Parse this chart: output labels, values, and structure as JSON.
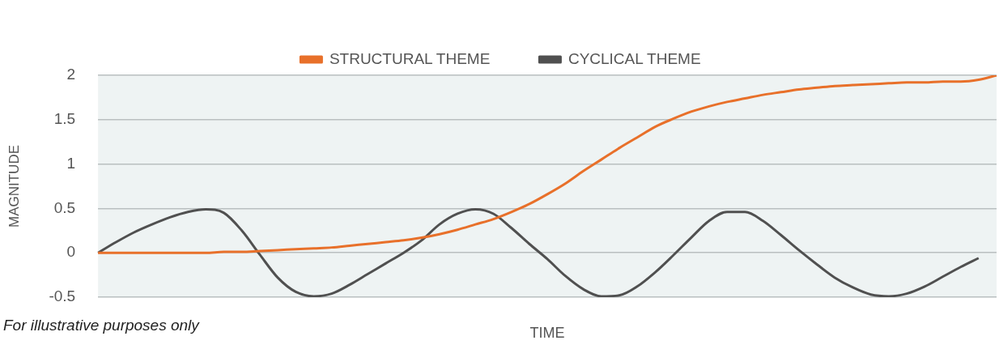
{
  "chart_data": {
    "type": "line",
    "xlabel": "TIME",
    "ylabel": "MAGNITUDE",
    "categories": [
      null,
      null,
      null,
      null,
      null,
      null,
      null,
      null,
      null,
      null,
      null,
      null,
      null,
      null,
      null,
      null,
      null,
      null,
      null,
      null,
      null,
      null,
      null,
      null,
      null,
      null,
      null,
      null,
      null,
      null,
      null,
      null,
      null,
      null,
      null,
      null,
      null,
      null,
      null,
      null,
      null,
      null,
      null,
      null,
      null,
      null,
      null,
      null,
      null,
      null,
      null
    ],
    "series": [
      {
        "name": "STRUCTURAL THEME",
        "color": "#e8702a",
        "values": [
          0,
          0,
          0,
          0,
          0,
          0,
          0,
          0.01,
          0.01,
          0.02,
          0.03,
          0.04,
          0.05,
          0.06,
          0.08,
          0.1,
          0.12,
          0.14,
          0.17,
          0.21,
          0.26,
          0.32,
          0.38,
          0.46,
          0.55,
          0.66,
          0.78,
          0.92,
          1.05,
          1.18,
          1.3,
          1.42,
          1.51,
          1.59,
          1.65,
          1.7,
          1.74,
          1.78,
          1.81,
          1.84,
          1.86,
          1.88,
          1.89,
          1.9,
          1.91,
          1.92,
          1.92,
          1.93,
          1.93,
          1.95,
          2.0
        ]
      },
      {
        "name": "CYCLICAL THEME",
        "color": "#505050",
        "values": [
          0,
          0.12,
          0.23,
          0.32,
          0.4,
          0.46,
          0.49,
          0.45,
          0.25,
          -0.02,
          -0.28,
          -0.44,
          -0.49,
          -0.46,
          -0.36,
          -0.24,
          -0.12,
          0,
          0.14,
          0.32,
          0.44,
          0.49,
          0.44,
          0.28,
          0.1,
          -0.07,
          -0.26,
          -0.41,
          -0.49,
          -0.48,
          -0.38,
          -0.22,
          -0.03,
          0.17,
          0.36,
          0.46,
          0.46,
          0.36,
          0.2,
          0.03,
          -0.13,
          -0.28,
          -0.39,
          -0.47,
          -0.49,
          -0.46,
          -0.38,
          -0.27,
          -0.16,
          -0.06,
          null
        ]
      }
    ],
    "ylim": [
      -0.5,
      2
    ],
    "yticks": [
      -0.5,
      0,
      0.5,
      1,
      1.5,
      2
    ],
    "grid": "y",
    "legend": "top",
    "marker": "none",
    "line_style": "solid",
    "annotations": [
      "For illustrative purposes only"
    ]
  }
}
